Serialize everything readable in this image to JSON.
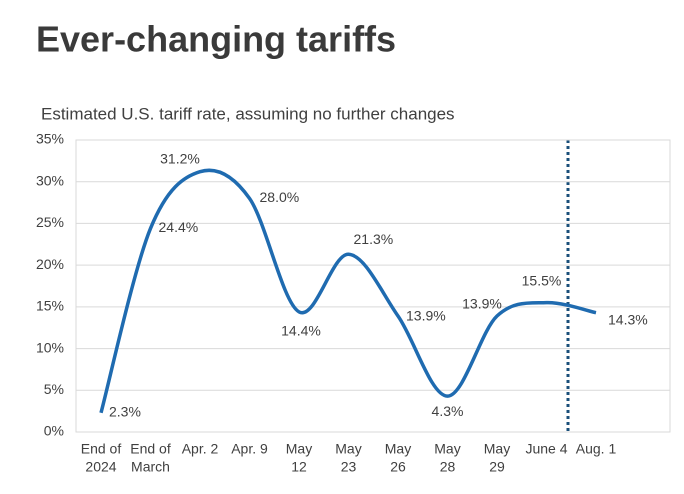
{
  "chart_data": {
    "type": "line",
    "title": "Ever-changing tariffs",
    "subtitle": "Estimated U.S. tariff rate, assuming no further changes",
    "categories": [
      [
        "End of",
        "2024"
      ],
      [
        "End of",
        "March"
      ],
      [
        "Apr. 2"
      ],
      [
        "Apr. 9"
      ],
      [
        "May",
        "12"
      ],
      [
        "May",
        "23"
      ],
      [
        "May",
        "26"
      ],
      [
        "May",
        "28"
      ],
      [
        "May",
        "29"
      ],
      [
        "June 4"
      ],
      [
        "Aug. 1"
      ]
    ],
    "series": [
      {
        "color": "#1f6bb0",
        "values": [
          2.3,
          24.4,
          31.2,
          28.0,
          14.4,
          21.3,
          13.9,
          4.3,
          13.9,
          15.5,
          14.3
        ],
        "value_labels": [
          "2.3%",
          "24.4%",
          "31.2%",
          "28.0%",
          "14.4%",
          "21.3%",
          "13.9%",
          "4.3%",
          "13.9%",
          "15.5%",
          "14.3%"
        ]
      }
    ],
    "ylim": [
      0,
      35
    ],
    "yticks": [
      {
        "value": 0,
        "label": "0%"
      },
      {
        "value": 5,
        "label": "5%"
      },
      {
        "value": 10,
        "label": "10%"
      },
      {
        "value": 15,
        "label": "15%"
      },
      {
        "value": 20,
        "label": "20%"
      },
      {
        "value": 25,
        "label": "25%"
      },
      {
        "value": 30,
        "label": "30%"
      },
      {
        "value": 35,
        "label": "35%"
      }
    ],
    "grid": true
  }
}
